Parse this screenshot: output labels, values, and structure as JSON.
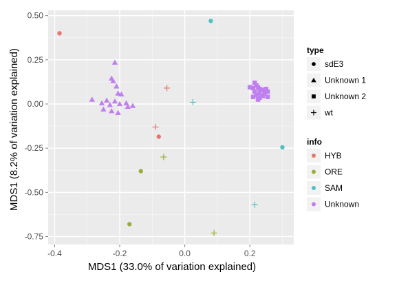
{
  "chart_data": {
    "type": "scatter",
    "xlabel": "MDS1 (33.0% of variation explained)",
    "ylabel": "MDS1 (8.2% of variation explained)",
    "xlim": [
      -0.42,
      0.335
    ],
    "ylim": [
      -0.795,
      0.53
    ],
    "x_ticks": [
      -0.4,
      -0.2,
      0.0,
      0.2
    ],
    "x_tick_labels": [
      "-0.4",
      "-0.2",
      "0.0",
      "0.2"
    ],
    "y_ticks": [
      0.5,
      0.25,
      0.0,
      -0.25,
      -0.5,
      -0.75
    ],
    "y_tick_labels": [
      "0.50",
      "0.25",
      "0.00",
      "-0.25",
      "-0.50",
      "-0.75"
    ],
    "grid": true,
    "background": "#ebebeb",
    "legends": [
      {
        "title": "type",
        "entries": [
          {
            "label": "sdE3",
            "shape": "circle"
          },
          {
            "label": "Unknown 1",
            "shape": "triangle"
          },
          {
            "label": "Unknown 2",
            "shape": "square"
          },
          {
            "label": "wt",
            "shape": "plus"
          }
        ]
      },
      {
        "title": "info",
        "entries": [
          {
            "label": "HYB",
            "color": "#e1786f"
          },
          {
            "label": "ORE",
            "color": "#9ead3a"
          },
          {
            "label": "SAM",
            "color": "#4fbfc3"
          },
          {
            "label": "Unknown",
            "color": "#c07ff0"
          }
        ]
      }
    ],
    "legend_position": "right",
    "points": [
      {
        "x": -0.385,
        "y": 0.4,
        "type": "sdE3",
        "info": "HYB"
      },
      {
        "x": -0.08,
        "y": -0.185,
        "type": "sdE3",
        "info": "HYB"
      },
      {
        "x": -0.055,
        "y": 0.09,
        "type": "wt",
        "info": "HYB"
      },
      {
        "x": -0.09,
        "y": -0.13,
        "type": "wt",
        "info": "HYB"
      },
      {
        "x": -0.135,
        "y": -0.38,
        "type": "sdE3",
        "info": "ORE"
      },
      {
        "x": -0.17,
        "y": -0.68,
        "type": "sdE3",
        "info": "ORE"
      },
      {
        "x": -0.065,
        "y": -0.3,
        "type": "wt",
        "info": "ORE"
      },
      {
        "x": 0.09,
        "y": -0.73,
        "type": "wt",
        "info": "ORE"
      },
      {
        "x": 0.08,
        "y": 0.47,
        "type": "sdE3",
        "info": "SAM"
      },
      {
        "x": 0.025,
        "y": 0.01,
        "type": "wt",
        "info": "SAM"
      },
      {
        "x": 0.3,
        "y": -0.245,
        "type": "sdE3",
        "info": "SAM"
      },
      {
        "x": 0.215,
        "y": -0.57,
        "type": "wt",
        "info": "SAM"
      },
      {
        "x": -0.215,
        "y": 0.235,
        "type": "Unknown 1",
        "info": "Unknown"
      },
      {
        "x": -0.225,
        "y": 0.145,
        "type": "Unknown 1",
        "info": "Unknown"
      },
      {
        "x": -0.22,
        "y": 0.13,
        "type": "Unknown 1",
        "info": "Unknown"
      },
      {
        "x": -0.21,
        "y": 0.1,
        "type": "Unknown 1",
        "info": "Unknown"
      },
      {
        "x": -0.205,
        "y": 0.06,
        "type": "Unknown 1",
        "info": "Unknown"
      },
      {
        "x": -0.195,
        "y": 0.055,
        "type": "Unknown 1",
        "info": "Unknown"
      },
      {
        "x": -0.285,
        "y": 0.025,
        "type": "Unknown 1",
        "info": "Unknown"
      },
      {
        "x": -0.255,
        "y": 0.005,
        "type": "Unknown 1",
        "info": "Unknown"
      },
      {
        "x": -0.24,
        "y": 0.02,
        "type": "Unknown 1",
        "info": "Unknown"
      },
      {
        "x": -0.23,
        "y": -0.005,
        "type": "Unknown 1",
        "info": "Unknown"
      },
      {
        "x": -0.215,
        "y": 0.015,
        "type": "Unknown 1",
        "info": "Unknown"
      },
      {
        "x": -0.2,
        "y": 0.0,
        "type": "Unknown 1",
        "info": "Unknown"
      },
      {
        "x": -0.18,
        "y": 0.005,
        "type": "Unknown 1",
        "info": "Unknown"
      },
      {
        "x": -0.175,
        "y": -0.015,
        "type": "Unknown 1",
        "info": "Unknown"
      },
      {
        "x": -0.16,
        "y": -0.01,
        "type": "Unknown 1",
        "info": "Unknown"
      },
      {
        "x": -0.25,
        "y": -0.03,
        "type": "Unknown 1",
        "info": "Unknown"
      },
      {
        "x": -0.225,
        "y": -0.04,
        "type": "Unknown 1",
        "info": "Unknown"
      },
      {
        "x": -0.205,
        "y": -0.05,
        "type": "Unknown 1",
        "info": "Unknown"
      },
      {
        "x": 0.215,
        "y": 0.12,
        "type": "Unknown 2",
        "info": "Unknown"
      },
      {
        "x": 0.22,
        "y": 0.105,
        "type": "Unknown 2",
        "info": "Unknown"
      },
      {
        "x": 0.225,
        "y": 0.095,
        "type": "Unknown 2",
        "info": "Unknown"
      },
      {
        "x": 0.23,
        "y": 0.085,
        "type": "Unknown 2",
        "info": "Unknown"
      },
      {
        "x": 0.21,
        "y": 0.09,
        "type": "Unknown 2",
        "info": "Unknown"
      },
      {
        "x": 0.2,
        "y": 0.095,
        "type": "Unknown 2",
        "info": "Unknown"
      },
      {
        "x": 0.24,
        "y": 0.08,
        "type": "Unknown 2",
        "info": "Unknown"
      },
      {
        "x": 0.25,
        "y": 0.085,
        "type": "Unknown 2",
        "info": "Unknown"
      },
      {
        "x": 0.215,
        "y": 0.07,
        "type": "Unknown 2",
        "info": "Unknown"
      },
      {
        "x": 0.23,
        "y": 0.06,
        "type": "Unknown 2",
        "info": "Unknown"
      },
      {
        "x": 0.245,
        "y": 0.06,
        "type": "Unknown 2",
        "info": "Unknown"
      },
      {
        "x": 0.255,
        "y": 0.07,
        "type": "Unknown 2",
        "info": "Unknown"
      },
      {
        "x": 0.22,
        "y": 0.05,
        "type": "Unknown 2",
        "info": "Unknown"
      },
      {
        "x": 0.24,
        "y": 0.045,
        "type": "Unknown 2",
        "info": "Unknown"
      },
      {
        "x": 0.21,
        "y": 0.04,
        "type": "Unknown 2",
        "info": "Unknown"
      },
      {
        "x": 0.255,
        "y": 0.04,
        "type": "Unknown 2",
        "info": "Unknown"
      },
      {
        "x": 0.23,
        "y": 0.035,
        "type": "Unknown 2",
        "info": "Unknown"
      },
      {
        "x": 0.225,
        "y": 0.025,
        "type": "Unknown 2",
        "info": "Unknown"
      }
    ]
  }
}
